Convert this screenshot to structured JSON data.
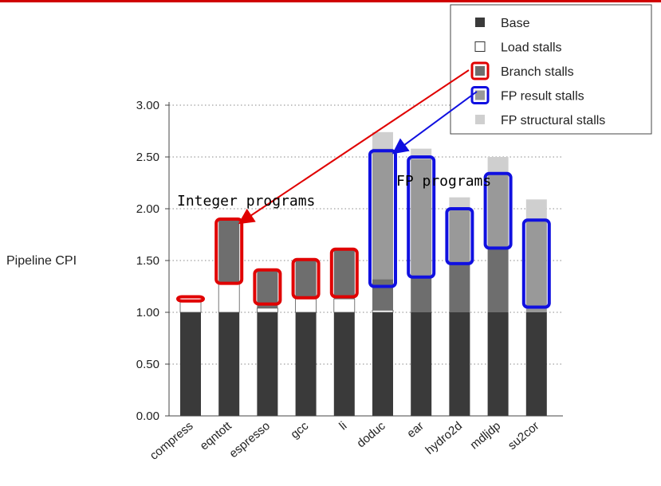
{
  "chart_data": {
    "type": "bar",
    "stacked": true,
    "ylabel": "Pipeline CPI",
    "ylim": [
      0,
      3.0
    ],
    "yticks": [
      "0.00",
      "0.50",
      "1.00",
      "1.50",
      "2.00",
      "2.50",
      "3.00"
    ],
    "grid": "horizontal dotted",
    "legend_position": "top-right",
    "categories": [
      "compress",
      "eqntott",
      "espresso",
      "gcc",
      "li",
      "doduc",
      "ear",
      "hydro2d",
      "mdljdp",
      "su2cor"
    ],
    "series": [
      {
        "name": "Base",
        "color": "#3a3a3a",
        "values": [
          1.0,
          1.0,
          1.0,
          1.0,
          1.0,
          1.0,
          1.0,
          1.0,
          1.0,
          1.0
        ]
      },
      {
        "name": "Load stalls",
        "color": "#ffffff",
        "values": [
          0.12,
          0.28,
          0.04,
          0.13,
          0.13,
          0.02,
          0.0,
          0.0,
          0.0,
          0.0
        ]
      },
      {
        "name": "Branch stalls",
        "color": "#6e6e6e",
        "values": [
          0.0,
          0.62,
          0.37,
          0.37,
          0.48,
          0.3,
          0.33,
          0.48,
          0.62,
          0.0
        ]
      },
      {
        "name": "FP result stalls",
        "color": "#999999",
        "values": [
          0.0,
          0.0,
          0.0,
          0.0,
          0.0,
          1.26,
          1.15,
          0.53,
          0.72,
          0.88
        ]
      },
      {
        "name": "FP structural stalls",
        "color": "#cfcfcf",
        "values": [
          0.0,
          0.0,
          0.0,
          0.0,
          0.0,
          0.16,
          0.1,
          0.1,
          0.16,
          0.21
        ]
      }
    ],
    "annotations": [
      {
        "text": "Integer programs"
      },
      {
        "text": "FP programs"
      }
    ],
    "highlight_boxes": {
      "branch": {
        "color": "#e00000",
        "ranges": [
          [
            1.11,
            1.15
          ],
          [
            1.28,
            1.9
          ],
          [
            1.08,
            1.41
          ],
          [
            1.14,
            1.51
          ],
          [
            1.15,
            1.61
          ]
        ]
      },
      "fp": {
        "color": "#1010e0",
        "ranges": [
          [
            1.25,
            2.56
          ],
          [
            1.34,
            2.5
          ],
          [
            1.47,
            2.0
          ],
          [
            1.62,
            2.34
          ],
          [
            1.05,
            1.89
          ]
        ]
      }
    }
  }
}
